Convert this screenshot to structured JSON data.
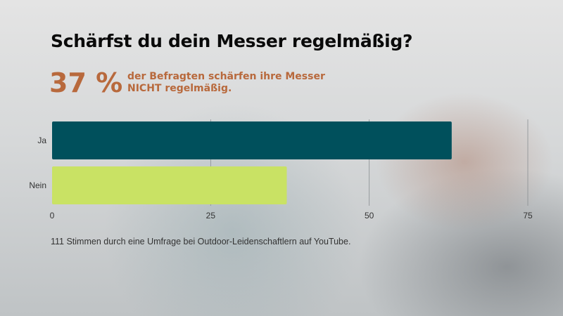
{
  "header": {
    "title": "Schärfst du dein Messer regelmäßig?",
    "highlight": "37 %",
    "highlight_text_line1": "der Befragten schärfen ihre Messer",
    "highlight_text_line2": "NICHT regelmäßig."
  },
  "footnote": "111 Stimmen durch eine Umfrage bei Outdoor-Leidenschaftlern auf YouTube.",
  "chart_data": {
    "type": "bar",
    "orientation": "horizontal",
    "categories": [
      "Ja",
      "Nein"
    ],
    "values": [
      63,
      37
    ],
    "colors": [
      "#00505c",
      "#c9e264"
    ],
    "xlim": [
      0,
      75
    ],
    "xticks": [
      0,
      25,
      50,
      75
    ],
    "grid": true
  }
}
